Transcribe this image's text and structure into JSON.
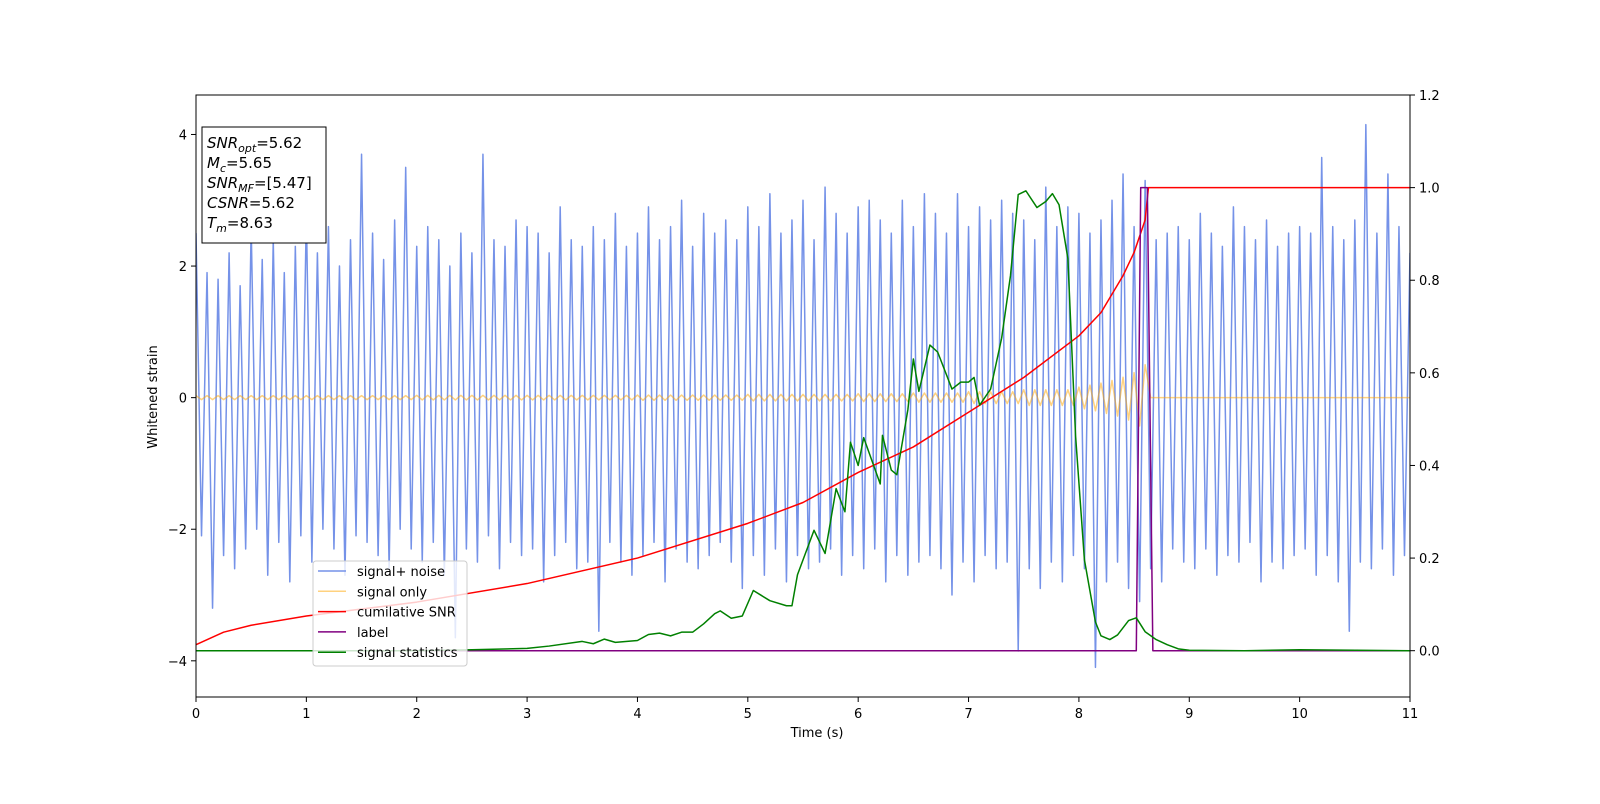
{
  "chart_data": {
    "type": "line",
    "xlabel": "Time (s)",
    "ylabel": "Whitened strain",
    "xlim": [
      0,
      11
    ],
    "ylim": [
      -4.55,
      4.6
    ],
    "y2lim": [
      -0.1,
      1.2
    ],
    "xticks": [
      0,
      1,
      2,
      3,
      4,
      5,
      6,
      7,
      8,
      9,
      10,
      11
    ],
    "yticks": [
      {
        "value": -4,
        "label": "−4"
      },
      {
        "value": -2,
        "label": "−2"
      },
      0,
      2,
      4
    ],
    "y2ticks": [
      {
        "value": 0,
        "label": "0.0"
      },
      0.2,
      0.4,
      0.6,
      0.8,
      {
        "value": 1,
        "label": "1.0"
      },
      1.2
    ],
    "legend": "lower left",
    "annotation": [
      {
        "symbol": "SNR",
        "sub": "opt",
        "rest": "=5.62"
      },
      {
        "symbol": "M",
        "sub": "c",
        "rest": "=5.65"
      },
      {
        "symbol": "SNR",
        "sub": "MF",
        "rest": "=[5.47]"
      },
      {
        "symbol": "CSNR",
        "rest": "=5.62"
      },
      {
        "symbol": "T",
        "sub": "m",
        "rest": "=8.63"
      }
    ],
    "x": [
      0,
      0.05,
      0.1,
      0.15,
      0.2,
      0.25,
      0.3,
      0.35,
      0.4,
      0.45,
      0.5,
      0.55,
      0.6,
      0.65,
      0.7,
      0.75,
      0.8,
      0.85,
      0.9,
      0.95,
      1,
      1.05,
      1.1,
      1.15,
      1.2,
      1.25,
      1.3,
      1.35,
      1.4,
      1.45,
      1.5,
      1.55,
      1.6,
      1.65,
      1.7,
      1.75,
      1.8,
      1.85,
      1.9,
      1.95,
      2,
      2.05,
      2.1,
      2.15,
      2.2,
      2.25,
      2.3,
      2.35,
      2.4,
      2.45,
      2.5,
      2.55,
      2.6,
      2.65,
      2.7,
      2.75,
      2.8,
      2.85,
      2.9,
      2.95,
      3,
      3.05,
      3.1,
      3.15,
      3.2,
      3.25,
      3.3,
      3.35,
      3.4,
      3.45,
      3.5,
      3.55,
      3.6,
      3.65,
      3.7,
      3.75,
      3.8,
      3.85,
      3.9,
      3.95,
      4,
      4.05,
      4.1,
      4.15,
      4.2,
      4.25,
      4.3,
      4.35,
      4.4,
      4.45,
      4.5,
      4.55,
      4.6,
      4.65,
      4.7,
      4.75,
      4.8,
      4.85,
      4.9,
      4.95,
      5,
      5.05,
      5.1,
      5.15,
      5.2,
      5.25,
      5.3,
      5.35,
      5.4,
      5.45,
      5.5,
      5.55,
      5.6,
      5.65,
      5.7,
      5.75,
      5.8,
      5.85,
      5.9,
      5.95,
      6,
      6.05,
      6.1,
      6.15,
      6.2,
      6.25,
      6.3,
      6.35,
      6.4,
      6.45,
      6.5,
      6.55,
      6.6,
      6.65,
      6.7,
      6.75,
      6.8,
      6.85,
      6.9,
      6.95,
      7,
      7.05,
      7.1,
      7.15,
      7.2,
      7.25,
      7.3,
      7.35,
      7.4,
      7.45,
      7.5,
      7.55,
      7.6,
      7.65,
      7.7,
      7.75,
      7.8,
      7.85,
      7.9,
      7.95,
      8,
      8.05,
      8.1,
      8.15,
      8.2,
      8.25,
      8.3,
      8.35,
      8.4,
      8.45,
      8.5,
      8.55,
      8.6,
      8.65,
      8.7,
      8.75,
      8.8,
      8.85,
      8.9,
      8.95,
      9,
      9.05,
      9.1,
      9.15,
      9.2,
      9.25,
      9.3,
      9.35,
      9.4,
      9.45,
      9.5,
      9.55,
      9.6,
      9.65,
      9.7,
      9.75,
      9.8,
      9.85,
      9.9,
      9.95,
      10,
      10.05,
      10.1,
      10.15,
      10.2,
      10.25,
      10.3,
      10.35,
      10.4,
      10.45,
      10.5,
      10.55,
      10.6,
      10.65,
      10.7,
      10.75,
      10.8,
      10.85,
      10.9,
      10.95,
      11
    ],
    "series": [
      {
        "name": "signal+ noise",
        "color": "#7592e8",
        "values": [
          2.5,
          -2.1,
          1.9,
          -3.2,
          1.8,
          -2.4,
          2.2,
          -2.6,
          1.7,
          -2.3,
          2.6,
          -2.0,
          2.1,
          -2.7,
          2.4,
          -2.2,
          1.9,
          -2.8,
          2.3,
          -2.1,
          2.8,
          -2.5,
          2.2,
          -2.0,
          2.6,
          -2.3,
          2.0,
          -2.7,
          2.4,
          -2.1,
          3.7,
          -2.2,
          2.5,
          -2.4,
          2.1,
          -2.6,
          2.7,
          -2.0,
          3.5,
          -2.3,
          2.3,
          -2.5,
          2.6,
          -2.2,
          2.4,
          -2.7,
          2.0,
          -3.65,
          2.5,
          -2.3,
          2.2,
          -2.5,
          3.7,
          -2.1,
          2.4,
          -2.6,
          2.3,
          -2.2,
          2.7,
          -2.4,
          2.6,
          -2.3,
          2.5,
          -2.8,
          2.2,
          -2.4,
          2.9,
          -2.2,
          2.4,
          -2.6,
          2.3,
          -2.5,
          2.6,
          -3.55,
          2.4,
          -2.2,
          2.8,
          -2.5,
          2.3,
          -2.7,
          2.5,
          -2.4,
          2.9,
          -2.2,
          2.4,
          -2.8,
          2.6,
          -2.3,
          3.0,
          -2.5,
          2.3,
          -2.6,
          2.8,
          -2.4,
          2.5,
          -2.2,
          2.7,
          -2.5,
          2.4,
          -2.9,
          2.9,
          -2.4,
          2.6,
          -2.7,
          3.1,
          -2.3,
          2.5,
          -2.8,
          2.7,
          -2.4,
          3.0,
          -2.6,
          2.4,
          -2.5,
          3.2,
          -2.3,
          2.8,
          -2.7,
          2.5,
          -2.4,
          2.9,
          -2.6,
          3.0,
          -2.3,
          2.7,
          -2.8,
          2.5,
          -2.4,
          3.0,
          -2.7,
          2.6,
          -2.5,
          3.1,
          -2.4,
          2.8,
          -2.6,
          2.5,
          -3.0,
          3.1,
          -2.5,
          2.6,
          -2.8,
          2.9,
          -2.4,
          2.7,
          -2.6,
          3.0,
          -2.5,
          2.8,
          -3.85,
          2.7,
          -2.6,
          2.4,
          -2.9,
          3.2,
          -2.5,
          2.6,
          -2.8,
          2.9,
          -2.4,
          2.8,
          -2.6,
          2.5,
          -4.1,
          2.7,
          -2.8,
          3.0,
          -2.5,
          3.4,
          -2.9,
          2.6,
          -3.1,
          3.3,
          -2.6,
          2.4,
          -2.8,
          2.5,
          -2.3,
          2.6,
          -2.5,
          2.4,
          -2.6,
          2.8,
          -2.3,
          2.5,
          -2.7,
          2.3,
          -2.4,
          2.9,
          -2.5,
          2.6,
          -2.2,
          2.4,
          -2.8,
          2.7,
          -2.5,
          2.3,
          -2.6,
          2.5,
          -2.4,
          2.6,
          -2.3,
          2.5,
          -2.7,
          3.65,
          -2.4,
          2.6,
          -2.8,
          2.4,
          -3.55,
          2.7,
          -2.5,
          4.15,
          -2.6,
          2.5,
          -2.3,
          3.4,
          -2.7,
          2.6,
          -2.4,
          2.2
        ]
      },
      {
        "name": "signal only",
        "color": "#ffa500",
        "alpha": 0.5,
        "values": [
          0.03,
          -0.03,
          0.03,
          -0.03,
          0.03,
          -0.03,
          0.03,
          -0.03,
          0.03,
          -0.03,
          0.03,
          -0.03,
          0.03,
          -0.03,
          0.03,
          -0.03,
          0.03,
          -0.03,
          0.03,
          -0.03,
          0.03,
          -0.03,
          0.03,
          -0.03,
          0.03,
          -0.03,
          0.03,
          -0.03,
          0.03,
          -0.03,
          0.03,
          -0.03,
          0.03,
          -0.03,
          0.03,
          -0.03,
          0.03,
          -0.03,
          0.03,
          -0.03,
          0.035,
          -0.035,
          0.035,
          -0.035,
          0.035,
          -0.035,
          0.035,
          -0.035,
          0.035,
          -0.035,
          0.035,
          -0.035,
          0.035,
          -0.035,
          0.035,
          -0.035,
          0.035,
          -0.035,
          0.035,
          -0.035,
          0.035,
          -0.035,
          0.035,
          -0.035,
          0.035,
          -0.035,
          0.035,
          -0.035,
          0.035,
          -0.035,
          0.035,
          -0.035,
          0.035,
          -0.035,
          0.035,
          -0.035,
          0.035,
          -0.035,
          0.035,
          -0.035,
          0.04,
          -0.04,
          0.04,
          -0.04,
          0.04,
          -0.04,
          0.04,
          -0.04,
          0.04,
          -0.04,
          0.04,
          -0.04,
          0.04,
          -0.04,
          0.04,
          -0.04,
          0.04,
          -0.04,
          0.04,
          -0.04,
          0.05,
          -0.05,
          0.05,
          -0.05,
          0.05,
          -0.05,
          0.05,
          -0.05,
          0.05,
          -0.05,
          0.05,
          -0.05,
          0.05,
          -0.05,
          0.05,
          -0.05,
          0.05,
          -0.05,
          0.05,
          -0.05,
          0.06,
          -0.06,
          0.06,
          -0.06,
          0.06,
          -0.06,
          0.06,
          -0.06,
          0.06,
          -0.06,
          0.07,
          -0.07,
          0.07,
          -0.07,
          0.07,
          -0.07,
          0.07,
          -0.07,
          0.07,
          -0.07,
          0.09,
          -0.09,
          0.09,
          -0.09,
          0.09,
          -0.09,
          0.09,
          -0.09,
          0.09,
          -0.09,
          0.12,
          -0.12,
          0.12,
          -0.12,
          0.12,
          -0.12,
          0.12,
          -0.12,
          0.12,
          -0.12,
          0.16,
          -0.17,
          0.19,
          -0.2,
          0.22,
          -0.24,
          0.26,
          -0.28,
          0.31,
          -0.34,
          0.38,
          -0.43,
          0.5,
          0,
          0,
          0,
          0,
          0,
          0,
          0,
          0,
          0,
          0,
          0,
          0,
          0,
          0,
          0,
          0,
          0,
          0,
          0,
          0,
          0,
          0,
          0,
          0,
          0,
          0,
          0,
          0,
          0,
          0,
          0,
          0,
          0,
          0,
          0,
          0,
          0,
          0,
          0,
          0,
          0,
          0,
          0,
          0,
          0,
          0,
          0,
          0
        ]
      },
      {
        "name": "cumilative SNR",
        "color": "#ff0000",
        "axis": "y2",
        "x": [
          0,
          0.25,
          0.5,
          1,
          1.5,
          2,
          3,
          4,
          5,
          5.5,
          6,
          6.5,
          7,
          7.5,
          8,
          8.2,
          8.3,
          8.4,
          8.5,
          8.6,
          8.63,
          11
        ],
        "values": [
          0.013,
          0.04,
          0.055,
          0.075,
          0.09,
          0.105,
          0.145,
          0.2,
          0.275,
          0.32,
          0.385,
          0.44,
          0.515,
          0.59,
          0.68,
          0.73,
          0.77,
          0.81,
          0.86,
          0.93,
          1,
          1
        ]
      },
      {
        "name": "label",
        "color": "#800080",
        "axis": "y2",
        "x": [
          0,
          8.52,
          8.56,
          8.62,
          8.67,
          11
        ],
        "values": [
          0,
          0,
          1,
          1,
          0,
          0
        ]
      },
      {
        "name": "signal statistics",
        "color": "#008000",
        "axis": "y2",
        "x": [
          0,
          1,
          2,
          2.5,
          3,
          3.2,
          3.5,
          3.6,
          3.7,
          3.8,
          4,
          4.1,
          4.2,
          4.3,
          4.4,
          4.5,
          4.6,
          4.7,
          4.75,
          4.85,
          4.95,
          5.05,
          5.2,
          5.35,
          5.4,
          5.45,
          5.6,
          5.7,
          5.8,
          5.88,
          5.93,
          6,
          6.05,
          6.2,
          6.22,
          6.3,
          6.35,
          6.45,
          6.5,
          6.55,
          6.65,
          6.72,
          6.85,
          6.93,
          7,
          7.05,
          7.1,
          7.2,
          7.3,
          7.38,
          7.45,
          7.52,
          7.62,
          7.7,
          7.76,
          7.82,
          7.9,
          7.97,
          8.05,
          8.15,
          8.2,
          8.28,
          8.35,
          8.45,
          8.52,
          8.6,
          8.7,
          8.8,
          8.9,
          9,
          9.5,
          10,
          11
        ],
        "values": [
          0,
          0,
          0,
          0.002,
          0.005,
          0.01,
          0.02,
          0.015,
          0.025,
          0.018,
          0.022,
          0.035,
          0.038,
          0.032,
          0.04,
          0.04,
          0.058,
          0.08,
          0.086,
          0.07,
          0.075,
          0.13,
          0.108,
          0.097,
          0.097,
          0.164,
          0.26,
          0.21,
          0.35,
          0.3,
          0.45,
          0.4,
          0.46,
          0.36,
          0.465,
          0.39,
          0.38,
          0.52,
          0.63,
          0.56,
          0.66,
          0.645,
          0.565,
          0.58,
          0.58,
          0.59,
          0.53,
          0.565,
          0.675,
          0.81,
          0.985,
          0.993,
          0.957,
          0.97,
          0.987,
          0.963,
          0.847,
          0.463,
          0.196,
          0.062,
          0.032,
          0.024,
          0.034,
          0.065,
          0.071,
          0.041,
          0.024,
          0.013,
          0.004,
          0.001,
          0,
          0.002,
          0
        ]
      }
    ]
  }
}
